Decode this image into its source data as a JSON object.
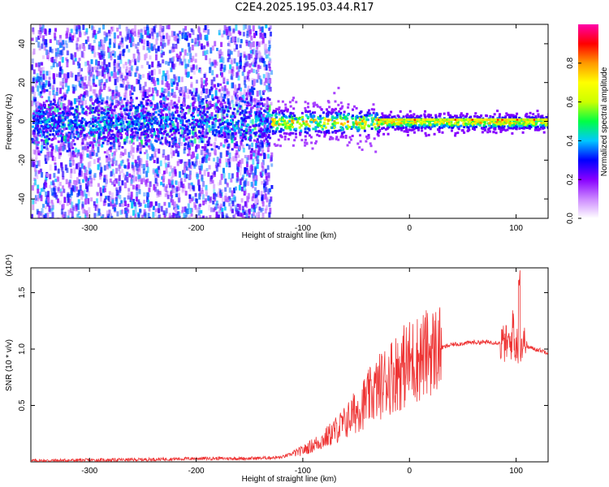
{
  "title": "C2E4.2025.195.03.44.R17",
  "chart_data": [
    {
      "type": "heatmap",
      "xlabel": "Height of straight line (km)",
      "ylabel": "Frequency (Hz)",
      "xlim": [
        -355,
        130
      ],
      "ylim": [
        -50,
        50
      ],
      "x_ticks": [
        -300,
        -200,
        -100,
        0,
        100
      ],
      "x_tick_labels": [
        "-300",
        "-200",
        "-100",
        "0",
        "100"
      ],
      "y_ticks": [
        40,
        20,
        0,
        -20,
        -40
      ],
      "y_tick_labels": [
        "40",
        "20",
        "0",
        "-20",
        "-40"
      ],
      "colorbar": {
        "label": "Normalized spectral amplitude",
        "range": [
          0,
          1
        ],
        "ticks": [
          0.0,
          0.2,
          0.4,
          0.6,
          0.8
        ],
        "tick_labels": [
          "0.0",
          "0.2",
          "0.4",
          "0.6",
          "0.8"
        ],
        "colors": [
          "#ffffff",
          "#cc88ff",
          "#8800ff",
          "#0000ff",
          "#00c8ff",
          "#00ff44",
          "#ccff00",
          "#ffff00",
          "#ff9900",
          "#ff0000",
          "#ff00aa"
        ]
      },
      "regions": [
        {
          "x": [
            -355,
            -130
          ],
          "description": "broadband scattered energy",
          "freq_spread": 50
        },
        {
          "x": [
            -130,
            -30
          ],
          "description": "tightening band",
          "freq_spread": 8
        },
        {
          "x": [
            -30,
            130
          ],
          "description": "narrow band near 0 Hz",
          "freq_spread": 3
        }
      ]
    },
    {
      "type": "line",
      "xlabel": "Height of straight line (km)",
      "ylabel": "SNR (10 * v/v)",
      "y_multiplier": "(x10⁴)",
      "xlim": [
        -355,
        130
      ],
      "ylim": [
        0,
        1.72
      ],
      "x_ticks": [
        -300,
        -200,
        -100,
        0,
        100
      ],
      "x_tick_labels": [
        "-300",
        "-200",
        "-100",
        "0",
        "100"
      ],
      "y_ticks": [
        0.5,
        1.0,
        1.5
      ],
      "y_tick_labels": [
        "0.5",
        "1.0",
        "1.5"
      ],
      "line_color": "#ee3333",
      "series": [
        {
          "x": [
            -355,
            -300,
            -250,
            -200,
            -150,
            -120,
            -100,
            -80,
            -60,
            -40,
            -20,
            0,
            20,
            40,
            60,
            80,
            95,
            103,
            110,
            130
          ],
          "values": [
            0.01,
            0.015,
            0.02,
            0.03,
            0.03,
            0.04,
            0.1,
            0.2,
            0.35,
            0.55,
            0.75,
            0.88,
            0.98,
            1.04,
            1.06,
            1.06,
            1.04,
            1.7,
            1.02,
            0.97
          ]
        }
      ]
    }
  ]
}
